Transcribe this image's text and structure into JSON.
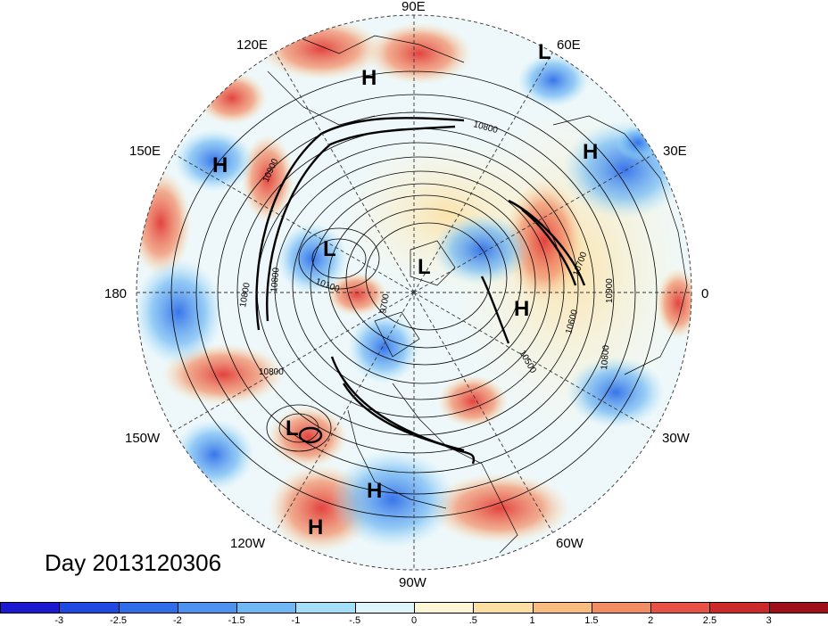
{
  "title": "Day 2013120306",
  "longitude_labels": {
    "top": "90E",
    "upper_right_1": "60E",
    "upper_right_2": "30E",
    "right": "0",
    "lower_right_1": "30W",
    "lower_right_2": "60W",
    "bottom": "90W",
    "lower_left_1": "120W",
    "lower_left_2": "150W",
    "left": "180",
    "upper_left_1": "150E",
    "upper_left_2": "120E"
  },
  "pressure_centers": [
    {
      "id": "h1",
      "label": "H"
    },
    {
      "id": "l1",
      "label": "L"
    },
    {
      "id": "h2",
      "label": "H"
    },
    {
      "id": "h3",
      "label": "H"
    },
    {
      "id": "l2",
      "label": "L"
    },
    {
      "id": "l3",
      "label": "L"
    },
    {
      "id": "h4",
      "label": "H"
    },
    {
      "id": "l4",
      "label": "L"
    },
    {
      "id": "h5",
      "label": "H"
    },
    {
      "id": "h6",
      "label": "H"
    }
  ],
  "contour_labels": [
    "10800",
    "10900",
    "10800",
    "10100",
    "9700",
    "10800",
    "10600",
    "10500",
    "10800",
    "10800",
    "10900",
    "10700"
  ],
  "colorbar": {
    "colors": [
      "#1c1ad1",
      "#2148e0",
      "#2f6ee8",
      "#4b93ee",
      "#6fb8f3",
      "#a4dff7",
      "#dcf6fb",
      "#fdf7d8",
      "#fce0a3",
      "#f8bc7f",
      "#f28c63",
      "#e85145",
      "#cc2a2a",
      "#a0101a"
    ],
    "ticks": [
      "-3",
      "-2.5",
      "-2",
      "-1.5",
      "-1",
      "-.5",
      "0",
      ".5",
      "1",
      "1.5",
      "2",
      "2.5",
      "3"
    ]
  }
}
